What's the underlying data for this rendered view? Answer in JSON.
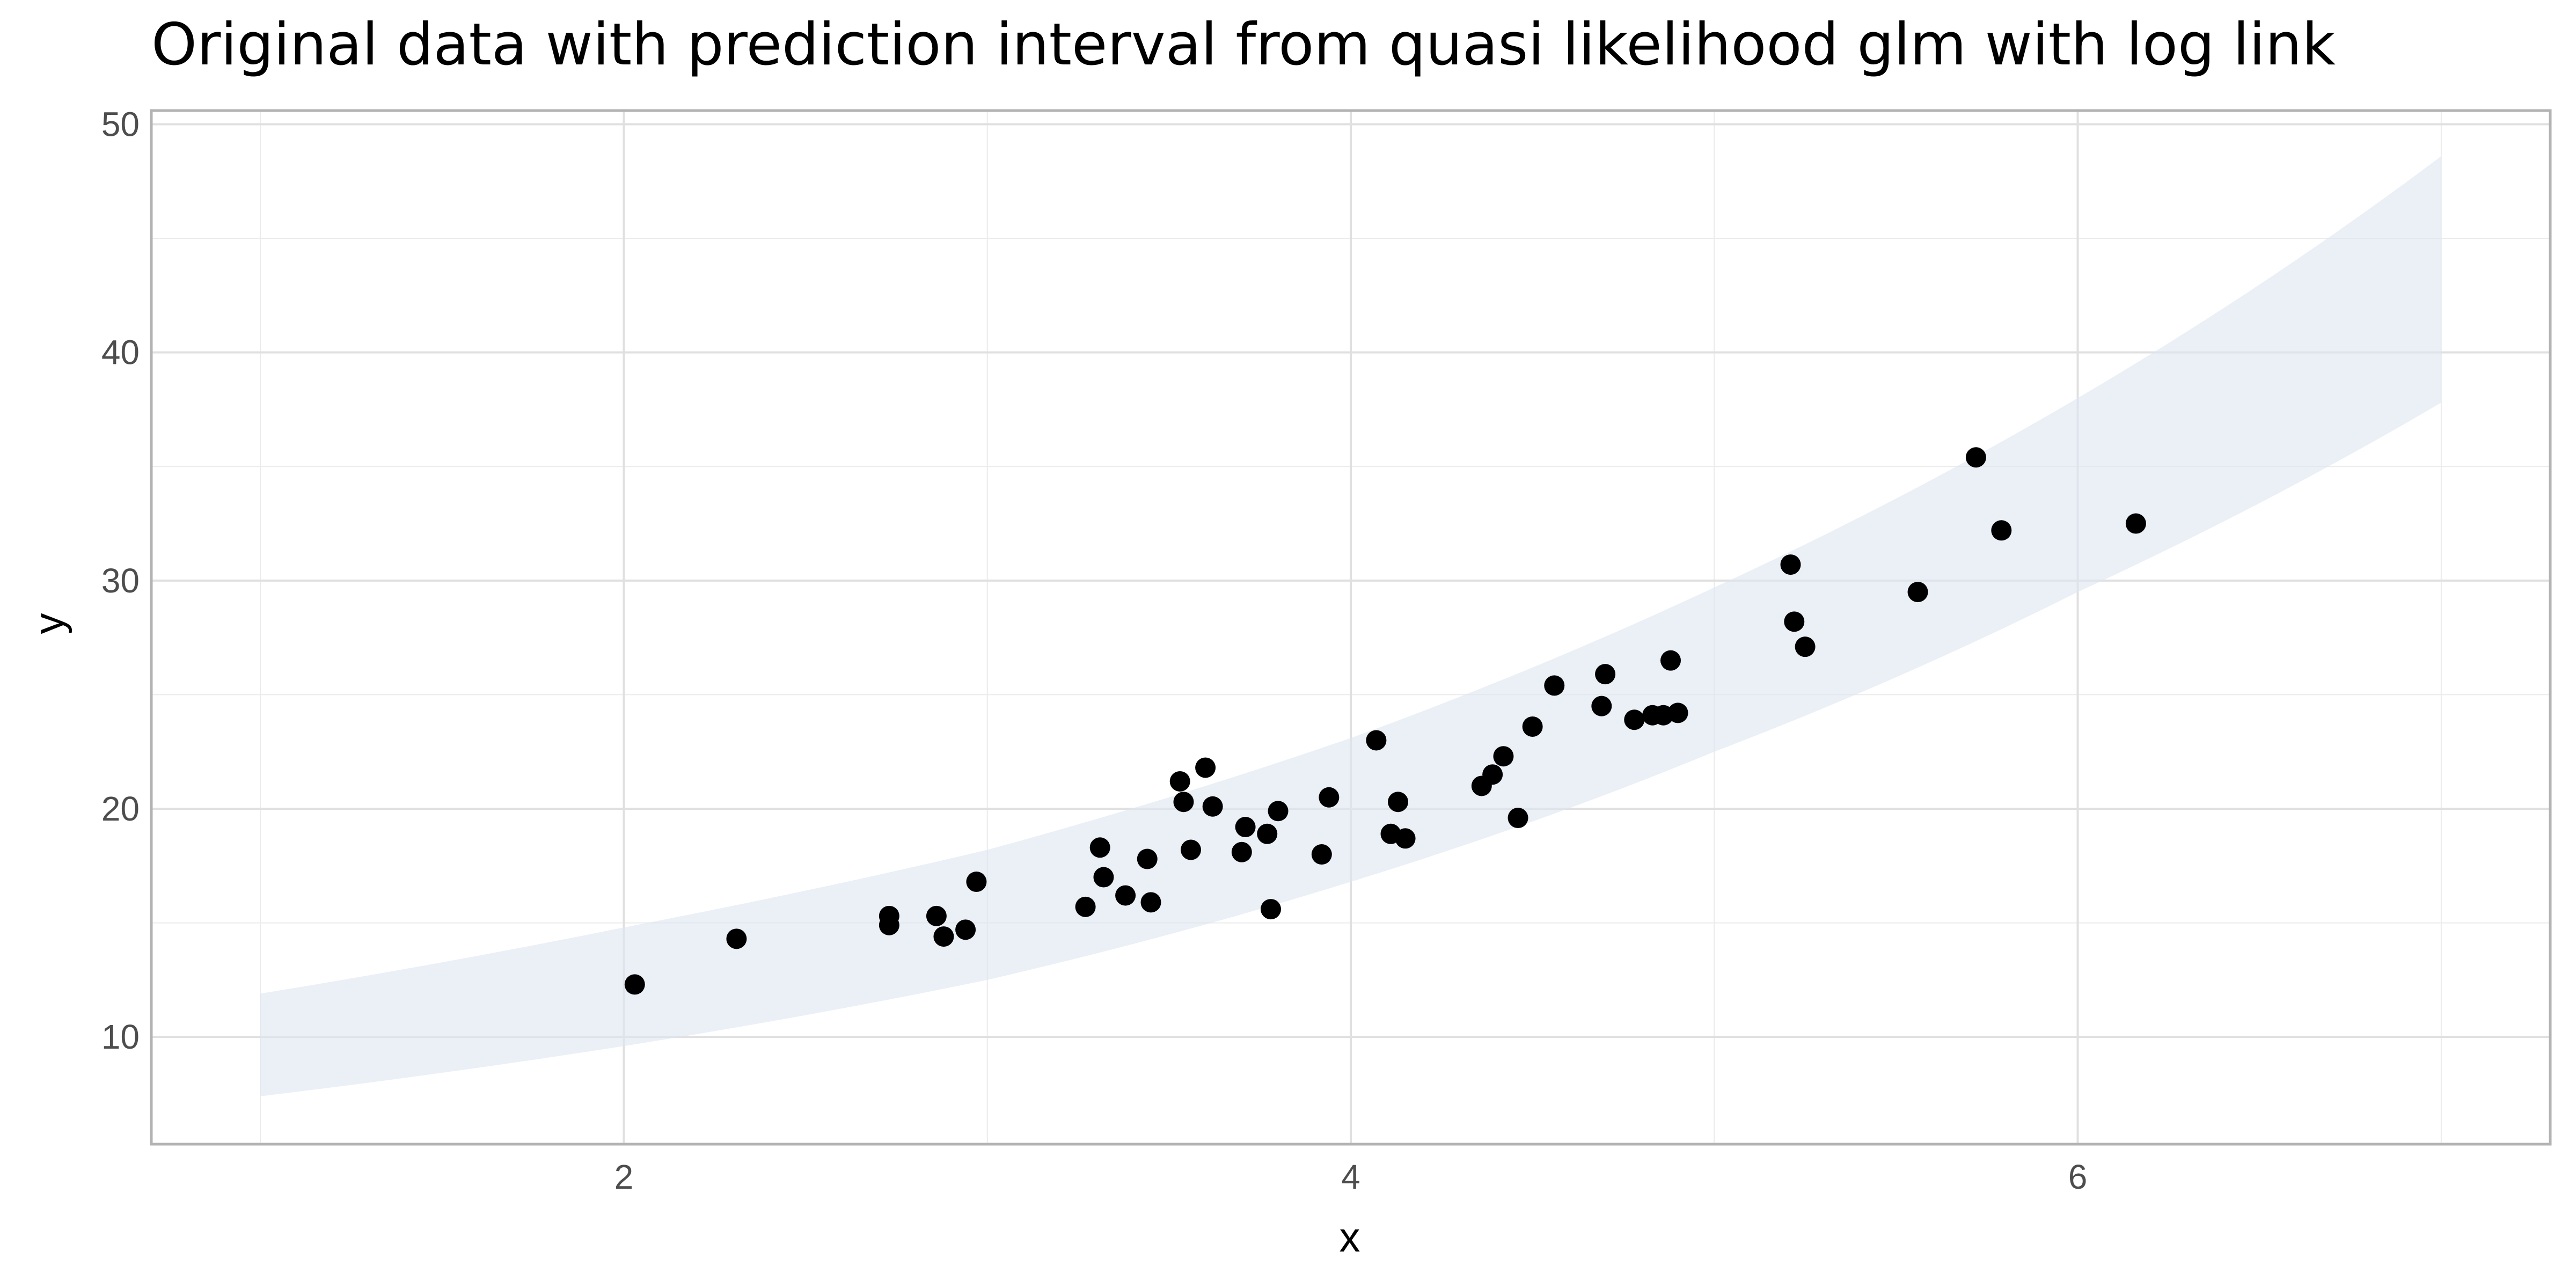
{
  "chart_data": {
    "type": "scatter",
    "title": "Original data with prediction interval from quasi likelihood glm with log link",
    "xlabel": "x",
    "ylabel": "y",
    "xlim": [
      0.7,
      7.3
    ],
    "ylim": [
      5.3,
      50.6
    ],
    "x_ticks": [
      2,
      4,
      6
    ],
    "y_ticks": [
      10,
      20,
      30,
      40,
      50
    ],
    "grid": true,
    "legend": "none",
    "colors": {
      "points": "#000000",
      "band": "#dde6f2",
      "grid": "#e0e0e0",
      "border": "#b3b3b3"
    },
    "points": [
      {
        "x": 2.03,
        "y": 12.3
      },
      {
        "x": 2.31,
        "y": 14.3
      },
      {
        "x": 2.73,
        "y": 15.3
      },
      {
        "x": 2.73,
        "y": 14.9
      },
      {
        "x": 2.86,
        "y": 15.3
      },
      {
        "x": 2.88,
        "y": 14.4
      },
      {
        "x": 2.94,
        "y": 14.7
      },
      {
        "x": 2.97,
        "y": 16.8
      },
      {
        "x": 3.27,
        "y": 15.7
      },
      {
        "x": 3.31,
        "y": 18.3
      },
      {
        "x": 3.32,
        "y": 17.0
      },
      {
        "x": 3.38,
        "y": 16.2
      },
      {
        "x": 3.44,
        "y": 17.8
      },
      {
        "x": 3.45,
        "y": 15.9
      },
      {
        "x": 3.53,
        "y": 21.2
      },
      {
        "x": 3.54,
        "y": 20.3
      },
      {
        "x": 3.56,
        "y": 18.2
      },
      {
        "x": 3.6,
        "y": 21.8
      },
      {
        "x": 3.62,
        "y": 20.1
      },
      {
        "x": 3.7,
        "y": 18.1
      },
      {
        "x": 3.71,
        "y": 19.2
      },
      {
        "x": 3.77,
        "y": 18.9
      },
      {
        "x": 3.78,
        "y": 15.6
      },
      {
        "x": 3.8,
        "y": 19.9
      },
      {
        "x": 3.92,
        "y": 18.0
      },
      {
        "x": 3.94,
        "y": 20.5
      },
      {
        "x": 4.07,
        "y": 23.0
      },
      {
        "x": 4.11,
        "y": 18.9
      },
      {
        "x": 4.13,
        "y": 20.3
      },
      {
        "x": 4.15,
        "y": 18.7
      },
      {
        "x": 4.36,
        "y": 21.0
      },
      {
        "x": 4.39,
        "y": 21.5
      },
      {
        "x": 4.42,
        "y": 22.3
      },
      {
        "x": 4.46,
        "y": 19.6
      },
      {
        "x": 4.5,
        "y": 23.6
      },
      {
        "x": 4.56,
        "y": 25.4
      },
      {
        "x": 4.69,
        "y": 24.5
      },
      {
        "x": 4.7,
        "y": 25.9
      },
      {
        "x": 4.78,
        "y": 23.9
      },
      {
        "x": 4.83,
        "y": 24.1
      },
      {
        "x": 4.86,
        "y": 24.1
      },
      {
        "x": 4.88,
        "y": 26.5
      },
      {
        "x": 4.9,
        "y": 24.2
      },
      {
        "x": 5.21,
        "y": 30.7
      },
      {
        "x": 5.22,
        "y": 28.2
      },
      {
        "x": 5.25,
        "y": 27.1
      },
      {
        "x": 5.56,
        "y": 29.5
      },
      {
        "x": 5.72,
        "y": 35.4
      },
      {
        "x": 5.79,
        "y": 32.2
      },
      {
        "x": 6.16,
        "y": 32.5
      }
    ],
    "band": {
      "x": [
        1.0,
        2.0,
        3.0,
        4.0,
        5.0,
        6.0,
        7.0
      ],
      "lower": [
        7.4,
        9.6,
        12.5,
        16.8,
        22.5,
        29.5,
        37.8
      ],
      "upper": [
        11.9,
        14.8,
        18.2,
        23.1,
        29.7,
        38.0,
        48.6
      ]
    }
  }
}
